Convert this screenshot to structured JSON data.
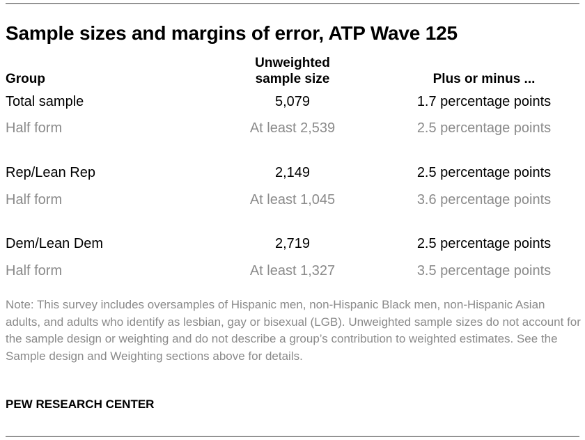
{
  "title": "Sample sizes and margins of error, ATP Wave 125",
  "headers": {
    "group": "Group",
    "sample_size_line1": "Unweighted",
    "sample_size_line2": "sample size",
    "margin": "Plus or minus ..."
  },
  "rows": [
    {
      "group": "Total sample",
      "size": "5,079",
      "moe": "1.7 percentage points",
      "sub": false
    },
    {
      "group": "Half form",
      "size": "At least 2,539",
      "moe": "2.5 percentage points",
      "sub": true
    },
    {
      "group": "Rep/Lean Rep",
      "size": "2,149",
      "moe": "2.5 percentage points",
      "sub": false
    },
    {
      "group": "Half form",
      "size": "At least 1,045",
      "moe": "3.6 percentage points",
      "sub": true
    },
    {
      "group": "Dem/Lean Dem",
      "size": "2,719",
      "moe": "2.5 percentage points",
      "sub": false
    },
    {
      "group": "Half form",
      "size": "At least 1,327",
      "moe": "3.5 percentage points",
      "sub": true
    }
  ],
  "note": "Note: This survey includes oversamples of Hispanic men, non-Hispanic Black men, non-Hispanic Asian adults, and adults who identify as lesbian, gay or bisexual (LGB). Unweighted sample sizes do not account for the sample design or weighting and do not describe a group’s contribution to weighted estimates. See the Sample design and Weighting sections above for details.",
  "source": "PEW RESEARCH CENTER",
  "colors": {
    "text": "#000000",
    "muted": "#8a8a8a",
    "rule": "#333333"
  }
}
